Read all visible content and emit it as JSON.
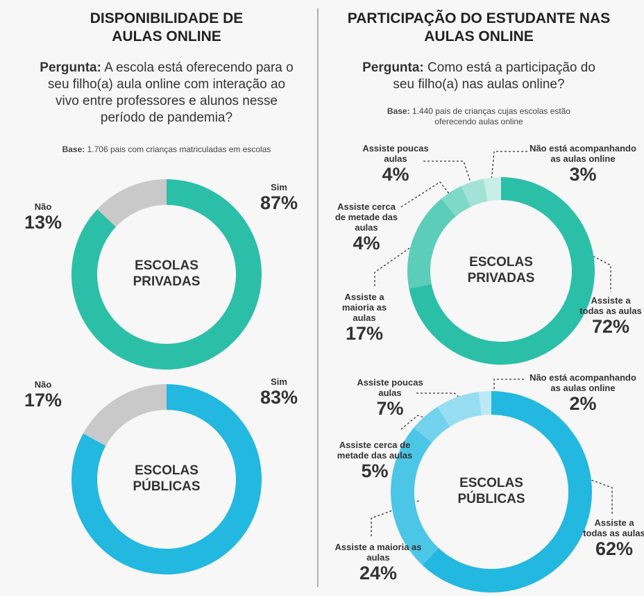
{
  "panels": [
    {
      "title": "DISPONIBILIDADE DE AULAS ONLINE",
      "question_label": "Pergunta:",
      "question": "A escola está oferecendo para o seu filho(a) aula online com interação ao vivo entre professores e alunos nesse período de pandemia?",
      "base_label": "Base:",
      "base": "1.706 pais com crianças matriculadas em escolas"
    },
    {
      "title": "PARTICIPAÇÃO DO ESTUDANTE NAS AULAS ONLINE",
      "question_label": "Pergunta:",
      "question": "Como está a participação do seu filho(a) nas aulas online?",
      "base_label": "Base:",
      "base": "1.440 pais de crianças cujas escolas estão oferecendo aulas online"
    }
  ],
  "chart_data": [
    {
      "type": "donut",
      "center_text": "ESCOLAS PRIVADAS",
      "categories": [
        "Sim",
        "Não"
      ],
      "values": [
        87,
        13
      ],
      "value_labels": [
        "87%",
        "13%"
      ],
      "colors": [
        "#2bbfa8",
        "#c9c9c9"
      ]
    },
    {
      "type": "donut",
      "center_text": "ESCOLAS PÚBLICAS",
      "categories": [
        "Sim",
        "Não"
      ],
      "values": [
        83,
        17
      ],
      "value_labels": [
        "83%",
        "17%"
      ],
      "colors": [
        "#22b8e0",
        "#c9c9c9"
      ]
    },
    {
      "type": "donut",
      "center_text": "ESCOLAS PRIVADAS",
      "categories": [
        "Assiste a todas as aulas",
        "Assiste a maioria as aulas",
        "Assiste cerca de metade das aulas",
        "Assiste poucas aulas",
        "Não está acompanhando as aulas online"
      ],
      "values": [
        72,
        17,
        4,
        4,
        3
      ],
      "value_labels": [
        "72%",
        "17%",
        "4%",
        "4%",
        "3%"
      ],
      "colors": [
        "#2bbfa8",
        "#5ccdb9",
        "#7fd9c9",
        "#a3e3d7",
        "#c8eee7"
      ]
    },
    {
      "type": "donut",
      "center_text": "ESCOLAS PÚBLICAS",
      "categories": [
        "Assiste a todas as aulas",
        "Assiste a maioria as aulas",
        "Assiste cerca de metade das aulas",
        "Assiste poucas aulas",
        "Não está acompanhando as aulas online"
      ],
      "values": [
        62,
        24,
        5,
        7,
        2
      ],
      "value_labels": [
        "62%",
        "24%",
        "5%",
        "7%",
        "2%"
      ],
      "colors": [
        "#22b8e0",
        "#4cc6e7",
        "#73d2ee",
        "#97def3",
        "#bde9f7"
      ]
    }
  ]
}
